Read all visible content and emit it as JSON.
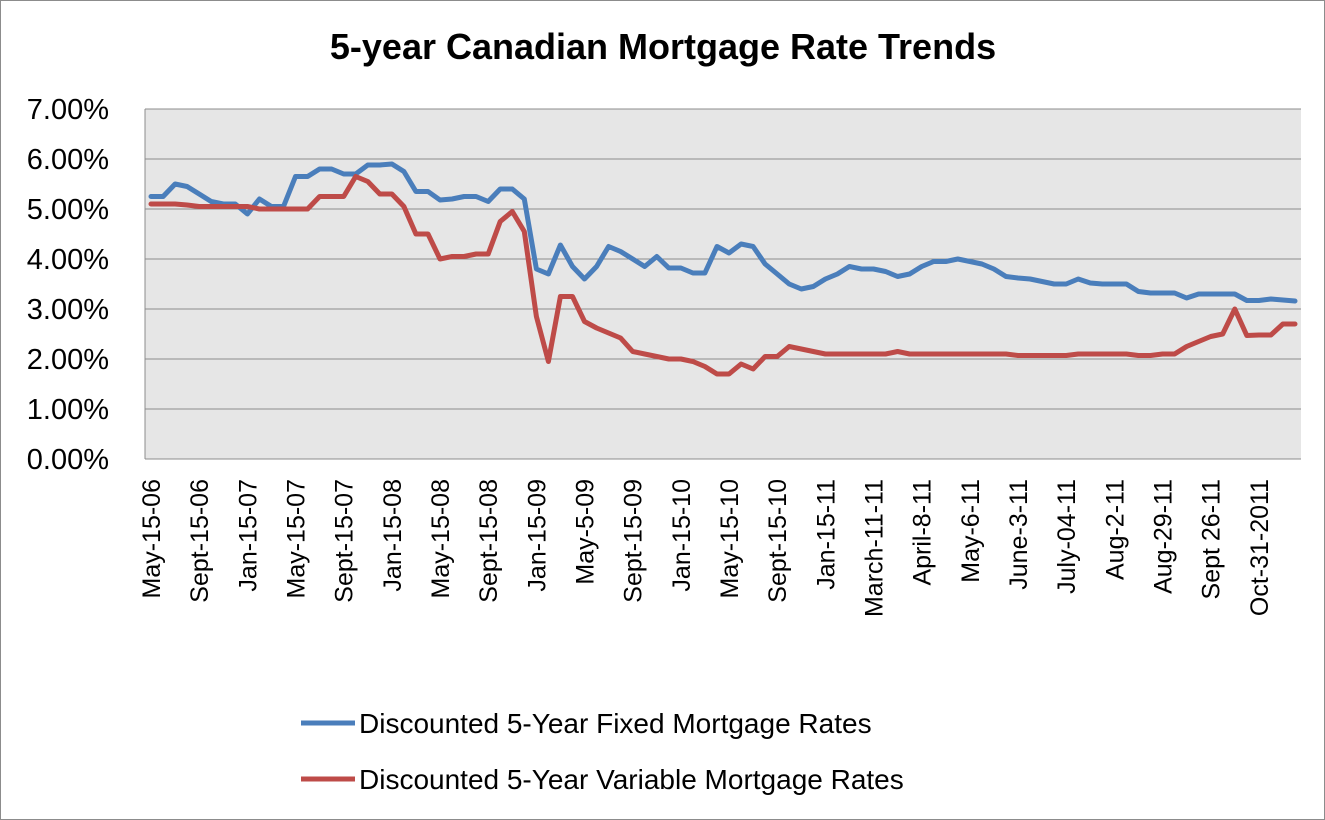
{
  "chart_data": {
    "type": "line",
    "title": "5-year Canadian Mortgage Rate Trends",
    "xlabel": "",
    "ylabel": "",
    "ylim": [
      0,
      0.07
    ],
    "y_ticks": [
      "0.00%",
      "1.00%",
      "2.00%",
      "3.00%",
      "4.00%",
      "5.00%",
      "6.00%",
      "7.00%"
    ],
    "x_tick_labels": [
      "May-15-06",
      "Sept-15-06",
      "Jan-15-07",
      "May-15-07",
      "Sept-15-07",
      "Jan-15-08",
      "May-15-08",
      "Sept-15-08",
      "Jan-15-09",
      "May-5-09",
      "Sept-15-09",
      "Jan-15-10",
      "May-15-10",
      "Sept-15-10",
      "Jan-15-11",
      "March-11-11",
      "April-8-11",
      "May-6-11",
      "June-3-11",
      "July-04-11",
      "Aug-2-11",
      "Aug-29-11",
      "Sept 26-11",
      "Oct-31-2011"
    ],
    "tick_interval": 4,
    "grid": "horizontal",
    "legend": "bottom",
    "colors": {
      "fixed": "#4a7ebb",
      "variable": "#be4b48",
      "plot_bg": "#e6e6e6",
      "grid": "#8c8c8c"
    },
    "series": [
      {
        "name": "Discounted 5-Year Fixed Mortgage Rates",
        "values": [
          0.0525,
          0.0525,
          0.055,
          0.0545,
          0.053,
          0.0515,
          0.051,
          0.051,
          0.049,
          0.052,
          0.0505,
          0.0505,
          0.0565,
          0.0565,
          0.058,
          0.058,
          0.057,
          0.057,
          0.0588,
          0.0588,
          0.059,
          0.0575,
          0.0535,
          0.0535,
          0.0518,
          0.052,
          0.0525,
          0.0525,
          0.0515,
          0.054,
          0.054,
          0.052,
          0.038,
          0.037,
          0.0428,
          0.0385,
          0.036,
          0.0385,
          0.0425,
          0.0415,
          0.04,
          0.0385,
          0.0405,
          0.0382,
          0.0382,
          0.0372,
          0.0372,
          0.0425,
          0.0412,
          0.043,
          0.0425,
          0.039,
          0.037,
          0.035,
          0.034,
          0.0345,
          0.036,
          0.037,
          0.0385,
          0.038,
          0.038,
          0.0375,
          0.0365,
          0.037,
          0.0385,
          0.0395,
          0.0395,
          0.04,
          0.0395,
          0.039,
          0.038,
          0.0365,
          0.0362,
          0.036,
          0.0355,
          0.035,
          0.035,
          0.036,
          0.0352,
          0.035,
          0.035,
          0.035,
          0.0335,
          0.0332,
          0.0332,
          0.0332,
          0.0322,
          0.033,
          0.033,
          0.033,
          0.033,
          0.0317,
          0.0317,
          0.032,
          0.0318,
          0.0316
        ]
      },
      {
        "name": "Discounted 5-Year Variable Mortgage Rates",
        "values": [
          0.051,
          0.051,
          0.051,
          0.0508,
          0.0505,
          0.0505,
          0.0505,
          0.0505,
          0.0505,
          0.05,
          0.05,
          0.05,
          0.05,
          0.05,
          0.0525,
          0.0525,
          0.0525,
          0.0565,
          0.0555,
          0.053,
          0.053,
          0.0505,
          0.045,
          0.045,
          0.04,
          0.0405,
          0.0405,
          0.041,
          0.041,
          0.0475,
          0.0495,
          0.0455,
          0.0285,
          0.0195,
          0.0325,
          0.0325,
          0.0275,
          0.0262,
          0.0252,
          0.0242,
          0.0215,
          0.021,
          0.0205,
          0.02,
          0.02,
          0.0195,
          0.0185,
          0.017,
          0.017,
          0.019,
          0.018,
          0.0205,
          0.0205,
          0.0225,
          0.022,
          0.0215,
          0.021,
          0.021,
          0.021,
          0.021,
          0.021,
          0.021,
          0.0215,
          0.021,
          0.021,
          0.021,
          0.021,
          0.021,
          0.021,
          0.021,
          0.021,
          0.021,
          0.0207,
          0.0207,
          0.0207,
          0.0207,
          0.0207,
          0.021,
          0.021,
          0.021,
          0.021,
          0.021,
          0.0207,
          0.0207,
          0.021,
          0.021,
          0.0225,
          0.0235,
          0.0245,
          0.025,
          0.03,
          0.0247,
          0.0248,
          0.0248,
          0.027,
          0.027
        ]
      }
    ]
  }
}
